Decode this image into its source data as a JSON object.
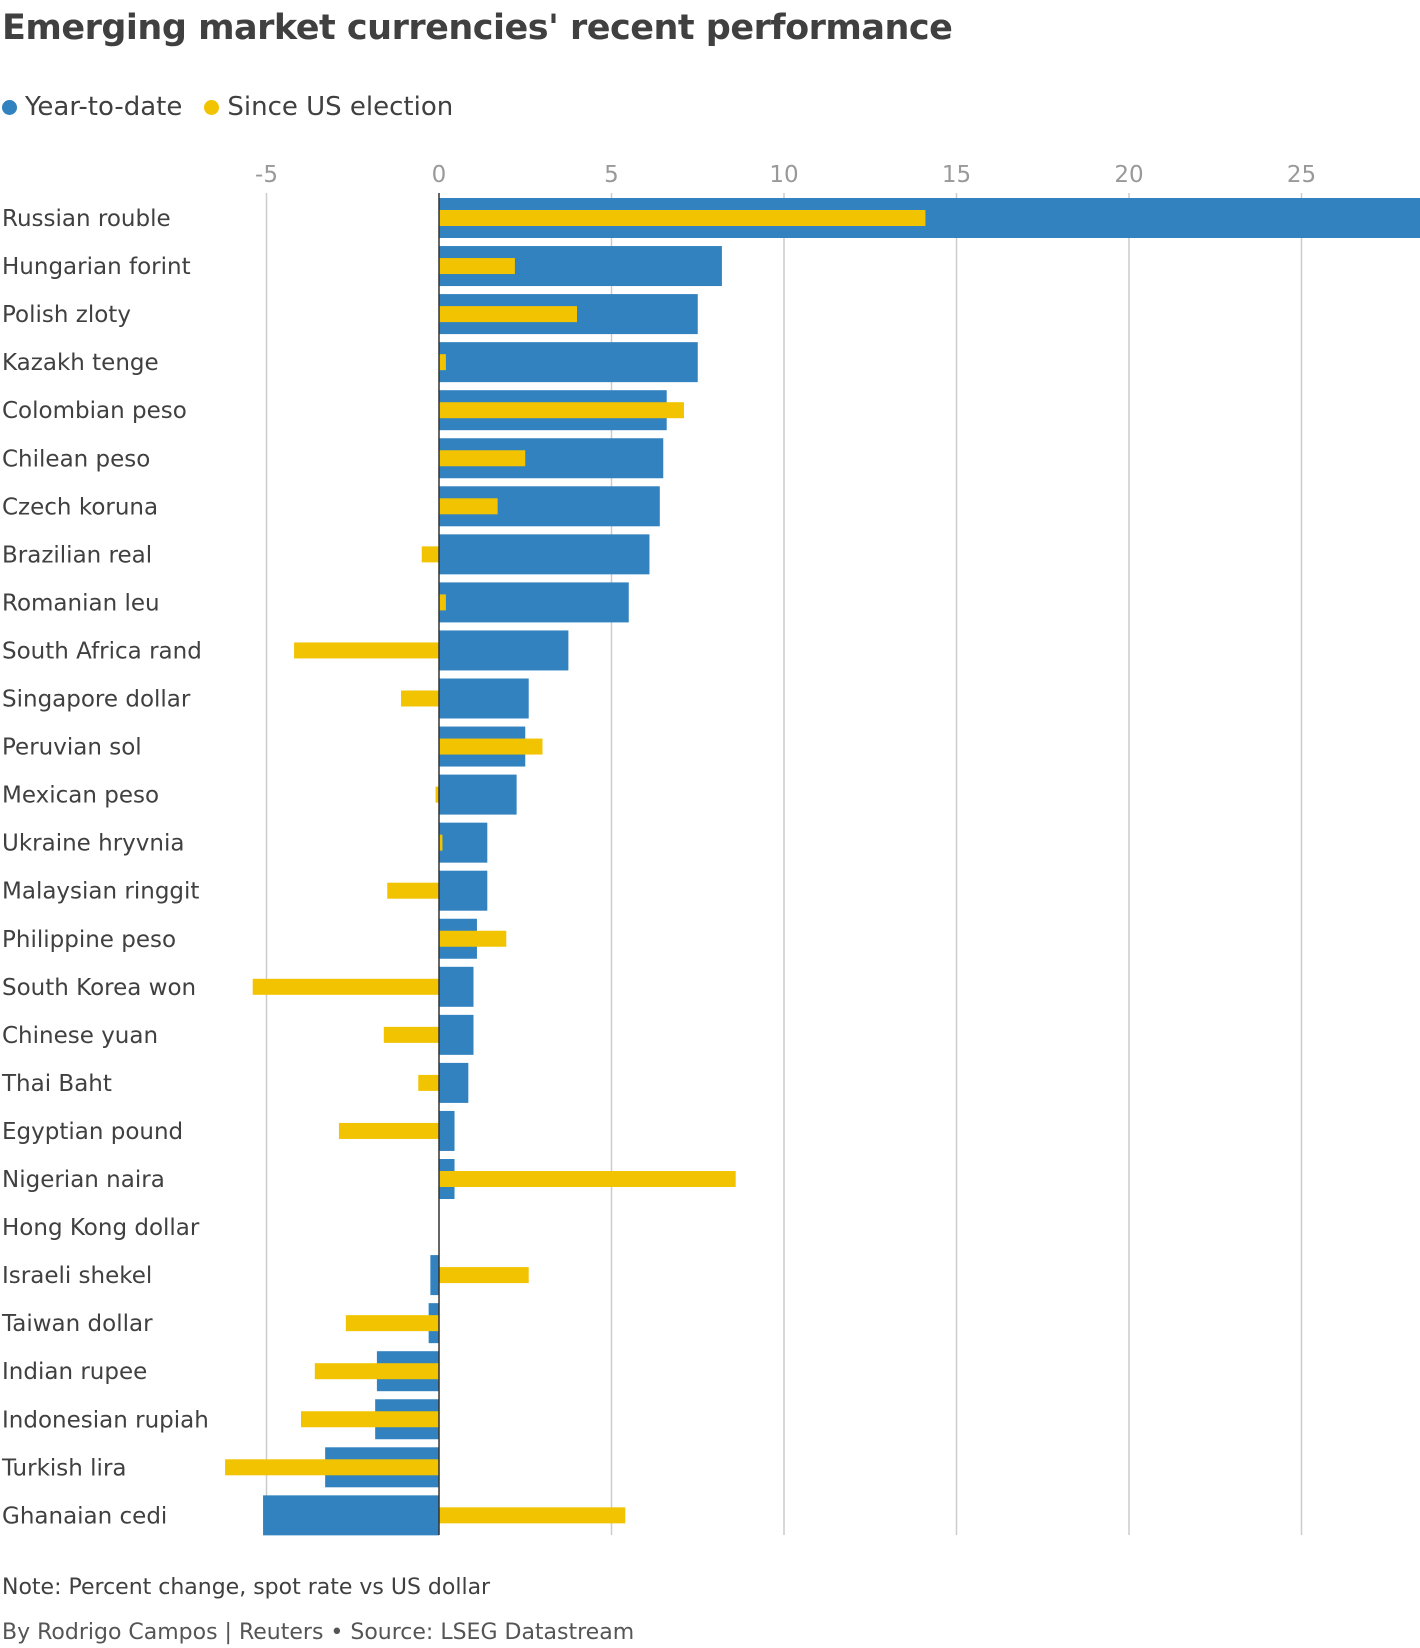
{
  "chart_data": {
    "type": "bar",
    "orientation": "horizontal",
    "title": "Emerging market currencies' recent performance",
    "xlabel": "",
    "ylabel": "",
    "xlim": [
      -5.5,
      29.5
    ],
    "xticks": [
      -5,
      0,
      5,
      10,
      15,
      20,
      25
    ],
    "grid": true,
    "legend_position": "top-left",
    "categories": [
      "Russian rouble",
      "Hungarian forint",
      "Polish zloty",
      "Kazakh tenge",
      "Colombian peso",
      "Chilean peso",
      "Czech koruna",
      "Brazilian real",
      "Romanian leu",
      "South Africa rand",
      "Singapore dollar",
      "Peruvian sol",
      "Mexican peso",
      "Ukraine hryvnia",
      "Malaysian ringgit",
      "Philippine peso",
      "South Korea won",
      "Chinese yuan",
      "Thai Baht",
      "Egyptian pound",
      "Nigerian naira",
      "Hong Kong dollar",
      "Israeli shekel",
      "Taiwan dollar",
      "Indian rupee",
      "Indonesian rupiah",
      "Turkish lira",
      "Ghanaian cedi"
    ],
    "series": [
      {
        "name": "Year-to-date",
        "color": "#3182bf",
        "values": [
          30.0,
          8.2,
          7.5,
          7.5,
          6.6,
          6.5,
          6.4,
          6.1,
          5.5,
          3.75,
          2.6,
          2.5,
          2.25,
          1.4,
          1.4,
          1.1,
          1.0,
          1.0,
          0.85,
          0.45,
          0.45,
          0.0,
          -0.25,
          -0.3,
          -1.8,
          -1.85,
          -3.3,
          -5.1
        ]
      },
      {
        "name": "Since US election",
        "color": "#f2c300",
        "values": [
          14.1,
          2.2,
          4.0,
          0.2,
          7.1,
          2.5,
          1.7,
          -0.5,
          0.2,
          -4.2,
          -1.1,
          3.0,
          -0.1,
          0.1,
          -1.5,
          1.95,
          -5.4,
          -1.6,
          -0.6,
          -2.9,
          8.6,
          0.0,
          2.6,
          -2.7,
          -3.6,
          -4.0,
          -6.2,
          5.4
        ]
      }
    ],
    "note": "Note: Percent change, spot rate vs US dollar",
    "credit": "By Rodrigo Campos | Reuters • Source: LSEG Datastream"
  }
}
